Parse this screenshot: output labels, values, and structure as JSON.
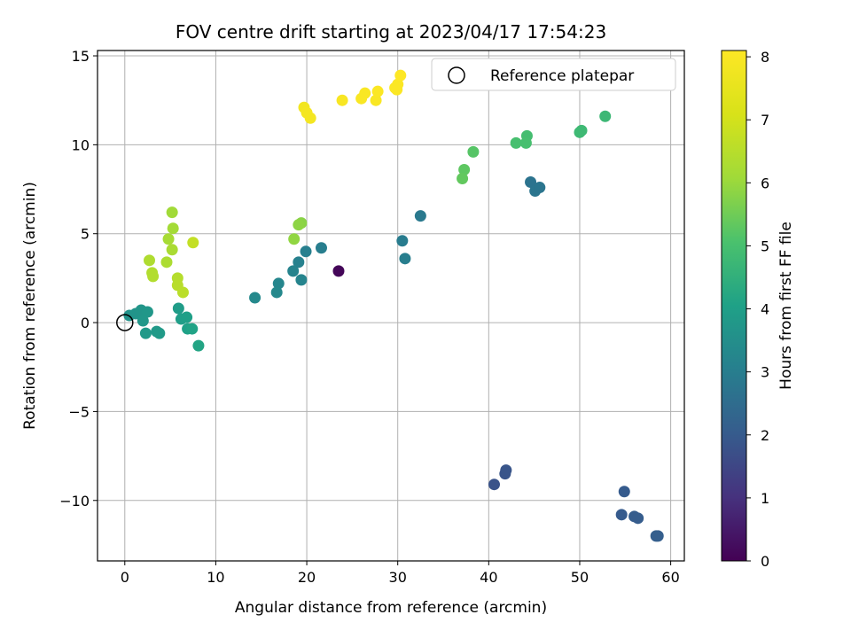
{
  "chart_data": {
    "type": "scatter",
    "title": "FOV centre drift starting at 2023/04/17 17:54:23",
    "xlabel": "Angular distance from reference (arcmin)",
    "ylabel": "Rotation from reference (arcmin)",
    "xlim": [
      -3,
      61.5
    ],
    "ylim": [
      -13.4,
      15.3
    ],
    "xticks": [
      0,
      10,
      20,
      30,
      40,
      50,
      60
    ],
    "xtick_labels": [
      "0",
      "10",
      "20",
      "30",
      "40",
      "50",
      "60"
    ],
    "yticks": [
      -10,
      -5,
      0,
      5,
      10,
      15
    ],
    "ytick_labels": [
      "−10",
      "−5",
      "0",
      "5",
      "10",
      "15"
    ],
    "grid": true,
    "legend": {
      "position": "top-right",
      "entries": [
        "Reference platepar"
      ]
    },
    "colorbar": {
      "label": "Hours from first FF file",
      "min": 0,
      "max": 8.1,
      "ticks": [
        0,
        1,
        2,
        3,
        4,
        5,
        6,
        7,
        8
      ],
      "tick_labels": [
        "0",
        "1",
        "2",
        "3",
        "4",
        "5",
        "6",
        "7",
        "8"
      ],
      "colormap": "viridis"
    },
    "reference": {
      "x": 0,
      "y": 0
    },
    "points": [
      {
        "x": 23.5,
        "y": 2.9,
        "c": 0.1
      },
      {
        "x": 40.6,
        "y": -9.1,
        "c": 1.8
      },
      {
        "x": 41.8,
        "y": -8.5,
        "c": 1.85
      },
      {
        "x": 41.9,
        "y": -8.3,
        "c": 1.85
      },
      {
        "x": 54.9,
        "y": -9.5,
        "c": 2.0
      },
      {
        "x": 54.6,
        "y": -10.8,
        "c": 2.0
      },
      {
        "x": 56.0,
        "y": -10.9,
        "c": 2.05
      },
      {
        "x": 56.4,
        "y": -11.0,
        "c": 2.05
      },
      {
        "x": 58.4,
        "y": -12.0,
        "c": 2.1
      },
      {
        "x": 58.6,
        "y": -12.0,
        "c": 2.1
      },
      {
        "x": 44.6,
        "y": 7.9,
        "c": 2.7
      },
      {
        "x": 45.1,
        "y": 7.4,
        "c": 2.75
      },
      {
        "x": 45.6,
        "y": 7.6,
        "c": 2.75
      },
      {
        "x": 32.5,
        "y": 6.0,
        "c": 2.85
      },
      {
        "x": 30.5,
        "y": 4.6,
        "c": 2.95
      },
      {
        "x": 30.8,
        "y": 3.6,
        "c": 3.0
      },
      {
        "x": 21.6,
        "y": 4.2,
        "c": 3.0
      },
      {
        "x": 19.9,
        "y": 4.0,
        "c": 3.05
      },
      {
        "x": 19.1,
        "y": 3.4,
        "c": 3.1
      },
      {
        "x": 18.5,
        "y": 2.9,
        "c": 3.15
      },
      {
        "x": 19.4,
        "y": 2.4,
        "c": 3.2
      },
      {
        "x": 16.9,
        "y": 2.2,
        "c": 3.25
      },
      {
        "x": 16.7,
        "y": 1.7,
        "c": 3.3
      },
      {
        "x": 14.3,
        "y": 1.4,
        "c": 3.35
      },
      {
        "x": 0.5,
        "y": 0.4,
        "c": 3.6
      },
      {
        "x": 1.2,
        "y": 0.5,
        "c": 3.65
      },
      {
        "x": 1.8,
        "y": 0.7,
        "c": 3.7
      },
      {
        "x": 2.5,
        "y": 0.6,
        "c": 3.75
      },
      {
        "x": 2.0,
        "y": 0.1,
        "c": 3.75
      },
      {
        "x": 2.3,
        "y": -0.6,
        "c": 3.8
      },
      {
        "x": 3.5,
        "y": -0.5,
        "c": 3.8
      },
      {
        "x": 3.8,
        "y": -0.6,
        "c": 3.85
      },
      {
        "x": 5.9,
        "y": 0.8,
        "c": 3.9
      },
      {
        "x": 6.2,
        "y": 0.2,
        "c": 3.95
      },
      {
        "x": 6.8,
        "y": 0.3,
        "c": 4.0
      },
      {
        "x": 6.9,
        "y": -0.35,
        "c": 4.05
      },
      {
        "x": 7.4,
        "y": -0.35,
        "c": 4.1
      },
      {
        "x": 8.1,
        "y": -1.3,
        "c": 4.15
      },
      {
        "x": 52.8,
        "y": 11.6,
        "c": 4.75
      },
      {
        "x": 50.2,
        "y": 10.8,
        "c": 4.8
      },
      {
        "x": 50.0,
        "y": 10.7,
        "c": 4.8
      },
      {
        "x": 44.2,
        "y": 10.5,
        "c": 4.95
      },
      {
        "x": 44.1,
        "y": 10.1,
        "c": 5.0
      },
      {
        "x": 43.0,
        "y": 10.1,
        "c": 5.0
      },
      {
        "x": 38.3,
        "y": 9.6,
        "c": 5.2
      },
      {
        "x": 37.3,
        "y": 8.6,
        "c": 5.3
      },
      {
        "x": 37.1,
        "y": 8.1,
        "c": 5.35
      },
      {
        "x": 19.4,
        "y": 5.6,
        "c": 5.8
      },
      {
        "x": 19.1,
        "y": 5.5,
        "c": 5.85
      },
      {
        "x": 18.6,
        "y": 4.7,
        "c": 5.9
      },
      {
        "x": 5.2,
        "y": 6.2,
        "c": 6.1
      },
      {
        "x": 5.3,
        "y": 5.3,
        "c": 6.15
      },
      {
        "x": 4.8,
        "y": 4.7,
        "c": 6.2
      },
      {
        "x": 5.2,
        "y": 4.1,
        "c": 6.25
      },
      {
        "x": 4.6,
        "y": 3.4,
        "c": 6.3
      },
      {
        "x": 2.7,
        "y": 3.5,
        "c": 6.35
      },
      {
        "x": 3.0,
        "y": 2.8,
        "c": 6.4
      },
      {
        "x": 3.1,
        "y": 2.6,
        "c": 6.4
      },
      {
        "x": 5.8,
        "y": 2.5,
        "c": 6.45
      },
      {
        "x": 5.8,
        "y": 2.1,
        "c": 6.5
      },
      {
        "x": 6.4,
        "y": 1.7,
        "c": 6.55
      },
      {
        "x": 7.5,
        "y": 4.5,
        "c": 6.7
      },
      {
        "x": 19.7,
        "y": 12.1,
        "c": 7.8
      },
      {
        "x": 20.0,
        "y": 11.8,
        "c": 7.85
      },
      {
        "x": 20.4,
        "y": 11.5,
        "c": 7.85
      },
      {
        "x": 23.9,
        "y": 12.5,
        "c": 7.95
      },
      {
        "x": 26.0,
        "y": 12.6,
        "c": 8.0
      },
      {
        "x": 26.4,
        "y": 12.9,
        "c": 8.0
      },
      {
        "x": 27.6,
        "y": 12.5,
        "c": 8.0
      },
      {
        "x": 27.8,
        "y": 13.0,
        "c": 8.05
      },
      {
        "x": 29.7,
        "y": 13.2,
        "c": 8.05
      },
      {
        "x": 30.0,
        "y": 13.4,
        "c": 8.05
      },
      {
        "x": 29.9,
        "y": 13.1,
        "c": 8.05
      },
      {
        "x": 30.3,
        "y": 13.9,
        "c": 8.1
      }
    ]
  }
}
